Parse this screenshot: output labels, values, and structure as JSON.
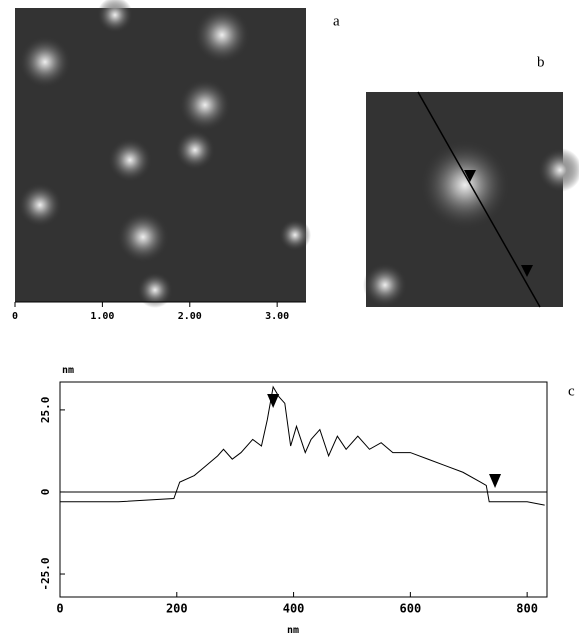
{
  "panel_labels": [
    "a",
    "b",
    "c"
  ],
  "image_a": {
    "xlim": [
      0,
      3.33
    ],
    "xticks": [
      0,
      {
        "value": 1,
        "label": "1.00"
      },
      {
        "value": 2,
        "label": "2.00"
      },
      {
        "value": 3,
        "label": "3.00"
      }
    ]
  },
  "chart_data": {
    "type": "line",
    "y_unit": "nm",
    "x_label": "nm",
    "color": "#000000",
    "x": [
      0,
      100,
      195,
      205,
      230,
      250,
      270,
      280,
      295,
      310,
      330,
      345,
      355,
      365,
      375,
      385,
      395,
      405,
      420,
      430,
      445,
      460,
      475,
      490,
      510,
      530,
      550,
      570,
      600,
      630,
      660,
      690,
      720,
      730,
      735,
      760,
      800,
      830
    ],
    "values": [
      -3,
      -3,
      -2,
      3,
      5,
      8,
      11,
      13,
      10,
      12,
      16,
      14,
      22,
      32,
      29,
      27,
      14,
      20,
      12,
      16,
      19,
      11,
      17,
      13,
      17,
      13,
      15,
      12,
      12,
      10,
      8,
      6,
      3,
      2,
      -3,
      -3,
      -3,
      -4
    ],
    "markers_x": [
      365,
      745
    ],
    "zero_line": 0,
    "xlim": [
      0,
      834
    ],
    "ylim": [
      -32,
      33.5
    ],
    "xticks": [
      0,
      200,
      400,
      600,
      800
    ],
    "yticks": [
      {
        "value": 25,
        "label": "25.0"
      },
      0,
      {
        "value": -25,
        "label": "-25.0"
      }
    ]
  }
}
